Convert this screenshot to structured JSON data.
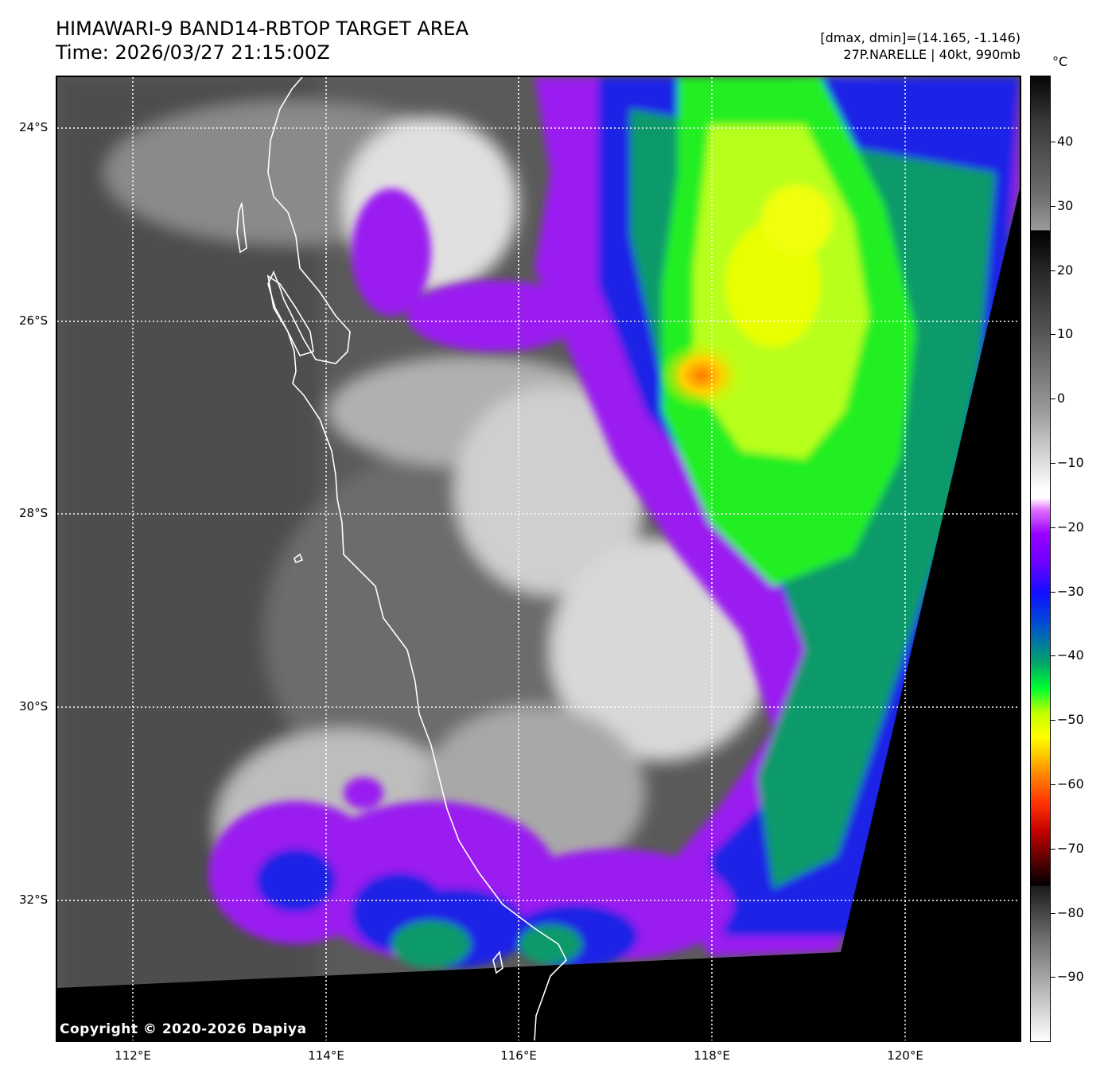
{
  "header": {
    "title_line1": "HIMAWARI-9 BAND14-RBTOP TARGET AREA",
    "title_line2": "Time: 2026/03/27 21:15:00Z",
    "dminmax": "[dmax, dmin]=(14.165, -1.146)",
    "storm": "27P.NARELLE | 40kt, 990mb"
  },
  "map": {
    "latitude_labels": [
      "24°S",
      "26°S",
      "28°S",
      "30°S",
      "32°S"
    ],
    "longitude_labels": [
      "112°E",
      "114°E",
      "116°E",
      "118°E",
      "120°E"
    ],
    "copyright": "Copyright © 2020-2026 Dapiya",
    "colors": {
      "coastline": "#ffffff",
      "gridlines": "#ffffff",
      "no_data": "#000000"
    }
  },
  "colorbar": {
    "unit": "°C",
    "ticks": [
      "40",
      "30",
      "20",
      "10",
      "0",
      "−10",
      "−20",
      "−30",
      "−40",
      "−50",
      "−60",
      "−70",
      "−80",
      "−90"
    ]
  }
}
